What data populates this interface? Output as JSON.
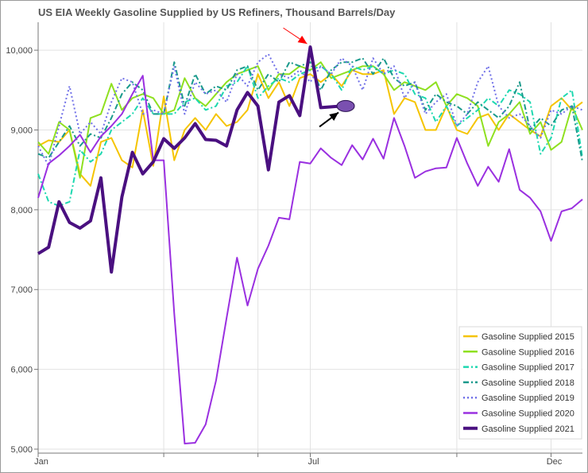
{
  "chart_data": {
    "type": "line",
    "title": "US EIA Weekly Gasoline Supplied by US Refiners,  Thousand Barrels/Day",
    "xlabel": "",
    "ylabel": "",
    "x_unit": "week of year",
    "xlim": [
      1,
      53
    ],
    "ylim": [
      4950,
      10350
    ],
    "yticks": [
      5000,
      6000,
      7000,
      8000,
      9000,
      10000
    ],
    "ytick_labels": [
      "5,000",
      "6,000",
      "7,000",
      "8,000",
      "9,000",
      "10,000"
    ],
    "xticks": [
      1,
      27,
      50
    ],
    "xtick_labels": [
      "Jan",
      "Jul",
      "Dec"
    ],
    "x_minor_ticks": [
      13,
      22,
      41
    ],
    "grid": true,
    "legend_position": "bottom-right",
    "series": [
      {
        "name": "Gasoline Supplied 2015",
        "color": "#f5c400",
        "style": "solid",
        "values": [
          8800,
          8870,
          8850,
          9000,
          8450,
          8300,
          8850,
          8900,
          8620,
          8530,
          9250,
          8550,
          9420,
          8620,
          9000,
          9150,
          9000,
          9200,
          9050,
          9100,
          9250,
          9700,
          9400,
          9600,
          9300,
          9650,
          9700,
          9600,
          9700,
          9550,
          9750,
          9700,
          9700,
          9750,
          9200,
          9400,
          9350,
          9000,
          9000,
          9300,
          9000,
          8950,
          9150,
          9200,
          9000,
          9200,
          9100,
          9000,
          8920,
          9300,
          9400,
          9250,
          9350
        ]
      },
      {
        "name": "Gasoline Supplied 2016",
        "color": "#8fe020",
        "style": "solid",
        "values": [
          8850,
          8700,
          9100,
          9000,
          8400,
          9150,
          9200,
          9580,
          9250,
          9400,
          9450,
          9400,
          9200,
          9250,
          9650,
          9400,
          9300,
          9450,
          9600,
          9700,
          9750,
          9800,
          9500,
          9700,
          9700,
          9800,
          9750,
          9850,
          9650,
          9700,
          9750,
          9800,
          9800,
          9700,
          9500,
          9600,
          9550,
          9500,
          9600,
          9300,
          9450,
          9400,
          9300,
          8800,
          9100,
          9200,
          9350,
          8950,
          9100,
          8750,
          8850,
          9300,
          9000
        ]
      },
      {
        "name": "Gasoline Supplied 2017",
        "color": "#1ed8b0",
        "style": "dashdot",
        "values": [
          8450,
          8100,
          8050,
          8100,
          8750,
          8600,
          8700,
          9000,
          9100,
          9200,
          9400,
          9200,
          9200,
          9200,
          9350,
          9400,
          9250,
          9300,
          9550,
          9600,
          9800,
          9400,
          9550,
          9650,
          9600,
          9700,
          9750,
          9800,
          9700,
          9500,
          9800,
          9750,
          9800,
          9700,
          9750,
          9700,
          9450,
          9400,
          9100,
          9300,
          9050,
          9150,
          9250,
          9400,
          9300,
          9500,
          9450,
          9350,
          8700,
          8900,
          9400,
          9500,
          8650
        ]
      },
      {
        "name": "Gasoline Supplied 2018",
        "color": "#1a9a8c",
        "style": "dashdot",
        "values": [
          8700,
          8650,
          8850,
          9050,
          8800,
          8950,
          8900,
          9150,
          9450,
          9600,
          9500,
          9200,
          9200,
          9850,
          9300,
          9700,
          9450,
          9550,
          9500,
          9750,
          9800,
          9500,
          9700,
          9600,
          9850,
          9800,
          9850,
          9500,
          9750,
          9850,
          9850,
          9900,
          9700,
          9900,
          9650,
          9550,
          9600,
          9250,
          9450,
          9350,
          9300,
          9200,
          9350,
          9250,
          9150,
          9300,
          9600,
          9000,
          9150,
          9050,
          9250,
          9300,
          8600
        ]
      },
      {
        "name": "Gasoline Supplied 2019",
        "color": "#7070e8",
        "style": "dotted",
        "values": [
          8800,
          8550,
          9050,
          9550,
          8950,
          9100,
          8950,
          9350,
          9650,
          9600,
          9200,
          9250,
          9200,
          9800,
          9200,
          9600,
          9450,
          9500,
          9350,
          9700,
          9550,
          9850,
          9950,
          9700,
          9650,
          9750,
          9600,
          9800,
          9700,
          9900,
          9800,
          9500,
          9900,
          9700,
          9800,
          9400,
          9600,
          9200,
          9350,
          9450,
          9050,
          9200,
          9600,
          9800,
          9300,
          9150,
          9200,
          9050,
          8900,
          9250,
          9200,
          9300,
          9250
        ]
      },
      {
        "name": "Gasoline Supplied 2020",
        "color": "#9a30e0",
        "style": "solid",
        "values": [
          8150,
          8580,
          8680,
          8800,
          8940,
          8720,
          8920,
          9050,
          9200,
          9450,
          9680,
          8620,
          8620,
          6700,
          5070,
          5080,
          5310,
          5860,
          6640,
          7400,
          6800,
          7260,
          7550,
          7900,
          7880,
          8600,
          8580,
          8770,
          8650,
          8560,
          8810,
          8630,
          8890,
          8640,
          9150,
          8800,
          8400,
          8480,
          8520,
          8530,
          8900,
          8580,
          8300,
          8540,
          8350,
          8760,
          8250,
          8150,
          7980,
          7610,
          7980,
          8020,
          8130
        ]
      },
      {
        "name": "Gasoline Supplied 2021",
        "color": "#4a1080",
        "style": "solid",
        "width": 4,
        "values": [
          7450,
          7530,
          8100,
          7840,
          7770,
          7860,
          8400,
          7220,
          8160,
          8720,
          8450,
          8600,
          8890,
          8770,
          8900,
          9080,
          8880,
          8870,
          8800,
          9250,
          9470,
          9300,
          8500,
          9350,
          9430,
          9180,
          10040,
          9280,
          9290,
          9300
        ]
      }
    ],
    "annotations": [
      {
        "type": "arrow",
        "color": "#ff0000",
        "target_series": "Gasoline Supplied 2021",
        "target_x": 27,
        "target_y": 10040
      },
      {
        "type": "arrow",
        "color": "#000000",
        "target_series": "Gasoline Supplied 2021",
        "target_x": 30,
        "target_y": 9300
      },
      {
        "type": "ellipse-marker",
        "color": "#7a50b0",
        "x": 30,
        "y": 9300
      }
    ]
  }
}
